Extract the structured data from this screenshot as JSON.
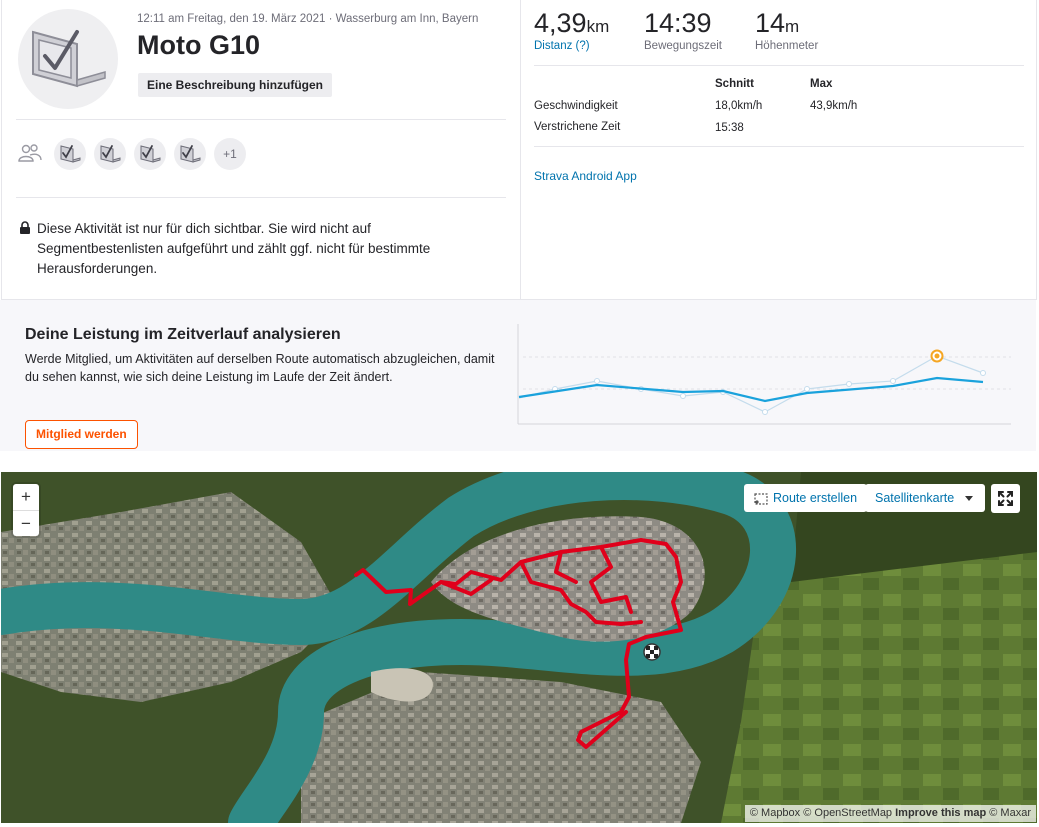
{
  "activity": {
    "subtitle": "12:11 am Freitag, den 19. März 2021 · Wasserburg am Inn, Bayern",
    "title": "Moto G10",
    "add_description": "Eine Beschreibung hinzufügen",
    "kudos_more": "+1",
    "privacy_notice": "Diese Aktivität ist nur für dich sichtbar. Sie wird nicht auf Segmentbestenlisten aufgeführt und zählt ggf. nicht für bestimmte Herausforderungen."
  },
  "stats": {
    "distance": {
      "value": "4,39",
      "unit": "km",
      "label": "Distanz (?)"
    },
    "moving_time": {
      "value": "14:39",
      "label": "Bewegungszeit"
    },
    "elevation": {
      "value": "14",
      "unit": "m",
      "label": "Höhenmeter"
    }
  },
  "stats_table": {
    "headers": [
      "Schnitt",
      "Max"
    ],
    "rows": [
      {
        "label": "Geschwindigkeit",
        "avg": "18,0km/h",
        "max": "43,9km/h"
      },
      {
        "label": "Verstrichene Zeit",
        "avg": "15:38",
        "max": ""
      }
    ]
  },
  "device_link": "Strava Android App",
  "upsell": {
    "title": "Deine Leistung im Zeitverlauf analysieren",
    "text": "Werde Mitglied, um Aktivitäten auf derselben Route automatisch abzugleichen, damit du sehen kannst, wie sich deine Leistung im Laufe der Zeit ändert.",
    "button": "Mitglied werden"
  },
  "map": {
    "zoom_in": "+",
    "zoom_out": "−",
    "route_button": "Route erstellen",
    "map_type": "Satellitenkarte",
    "attribution": {
      "mapbox": "© Mapbox",
      "osm": "© OpenStreetMap",
      "improve": "Improve this map",
      "maxar": "© Maxar"
    }
  },
  "colors": {
    "brand": "#fc5200",
    "link": "#0073ad",
    "route": "#e0001b",
    "chart_line": "#1aa2dc"
  }
}
